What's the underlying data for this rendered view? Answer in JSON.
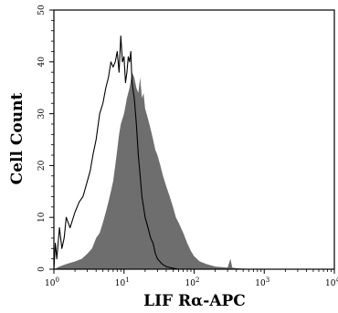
{
  "chart_data": {
    "type": "area",
    "xlabel": "LIF Rα-APC",
    "ylabel": "Cell Count",
    "xscale": "log",
    "xlim": [
      1,
      10000
    ],
    "ylim": [
      0,
      50
    ],
    "x_ticks": [
      {
        "value": 1,
        "base": "10",
        "exp": "0"
      },
      {
        "value": 10,
        "base": "10",
        "exp": "1"
      },
      {
        "value": 100,
        "base": "10",
        "exp": "2"
      },
      {
        "value": 1000,
        "base": "10",
        "exp": "3"
      },
      {
        "value": 10000,
        "base": "10",
        "exp": "4"
      }
    ],
    "y_ticks": [
      "0",
      "10",
      "20",
      "30",
      "40",
      "50"
    ],
    "grid": false,
    "series": [
      {
        "style": "filled",
        "color": "#6e6e6e",
        "x": [
          1.0,
          1.2,
          1.5,
          2.0,
          2.5,
          3.0,
          3.5,
          4.0,
          4.5,
          5.0,
          5.5,
          6.0,
          6.5,
          7.0,
          7.5,
          8.0,
          8.5,
          9.0,
          10,
          11,
          12,
          13,
          14,
          15,
          16,
          17,
          18,
          19,
          20,
          22,
          24,
          26,
          28,
          30,
          33,
          36,
          40,
          45,
          50,
          55,
          60,
          70,
          80,
          90,
          100,
          120,
          150,
          200,
          300,
          330,
          350,
          400,
          500,
          1000,
          10000
        ],
        "y": [
          0,
          0.5,
          1,
          1.5,
          2,
          3,
          4,
          6,
          7,
          9,
          11,
          13,
          15,
          17,
          20,
          23,
          26,
          28,
          30,
          33,
          35,
          38,
          37,
          35,
          34,
          37,
          33,
          34,
          31,
          29,
          27,
          25,
          23,
          22,
          20,
          18,
          16,
          14,
          12,
          10,
          9,
          7,
          5,
          3.5,
          2.5,
          1.5,
          1,
          0.5,
          0.3,
          2,
          0.3,
          0.2,
          0.1,
          0,
          0
        ]
      },
      {
        "style": "outline",
        "color": "#000000",
        "x": [
          1.0,
          1.05,
          1.1,
          1.2,
          1.3,
          1.4,
          1.5,
          1.7,
          2.0,
          2.3,
          2.6,
          3.0,
          3.3,
          3.6,
          4.0,
          4.5,
          5.0,
          5.5,
          6.0,
          6.5,
          7.0,
          7.5,
          8.0,
          8.5,
          9.0,
          9.5,
          10,
          10.5,
          11,
          11.5,
          12,
          12.5,
          13,
          14,
          15,
          16,
          17,
          18,
          19,
          20,
          22,
          24,
          26,
          28,
          30,
          35,
          40,
          50,
          60,
          100,
          10000
        ],
        "y": [
          0,
          5,
          2,
          8,
          4,
          6,
          10,
          8,
          11,
          13,
          14,
          17,
          19,
          22,
          25,
          30,
          32,
          35,
          37,
          40,
          39,
          40,
          42,
          38,
          45,
          40,
          41,
          36,
          38,
          41,
          40,
          42,
          36,
          33,
          28,
          22,
          18,
          14,
          12,
          10,
          8,
          6,
          5,
          3,
          2,
          1,
          0.5,
          0.2,
          0,
          0,
          0
        ]
      }
    ]
  }
}
